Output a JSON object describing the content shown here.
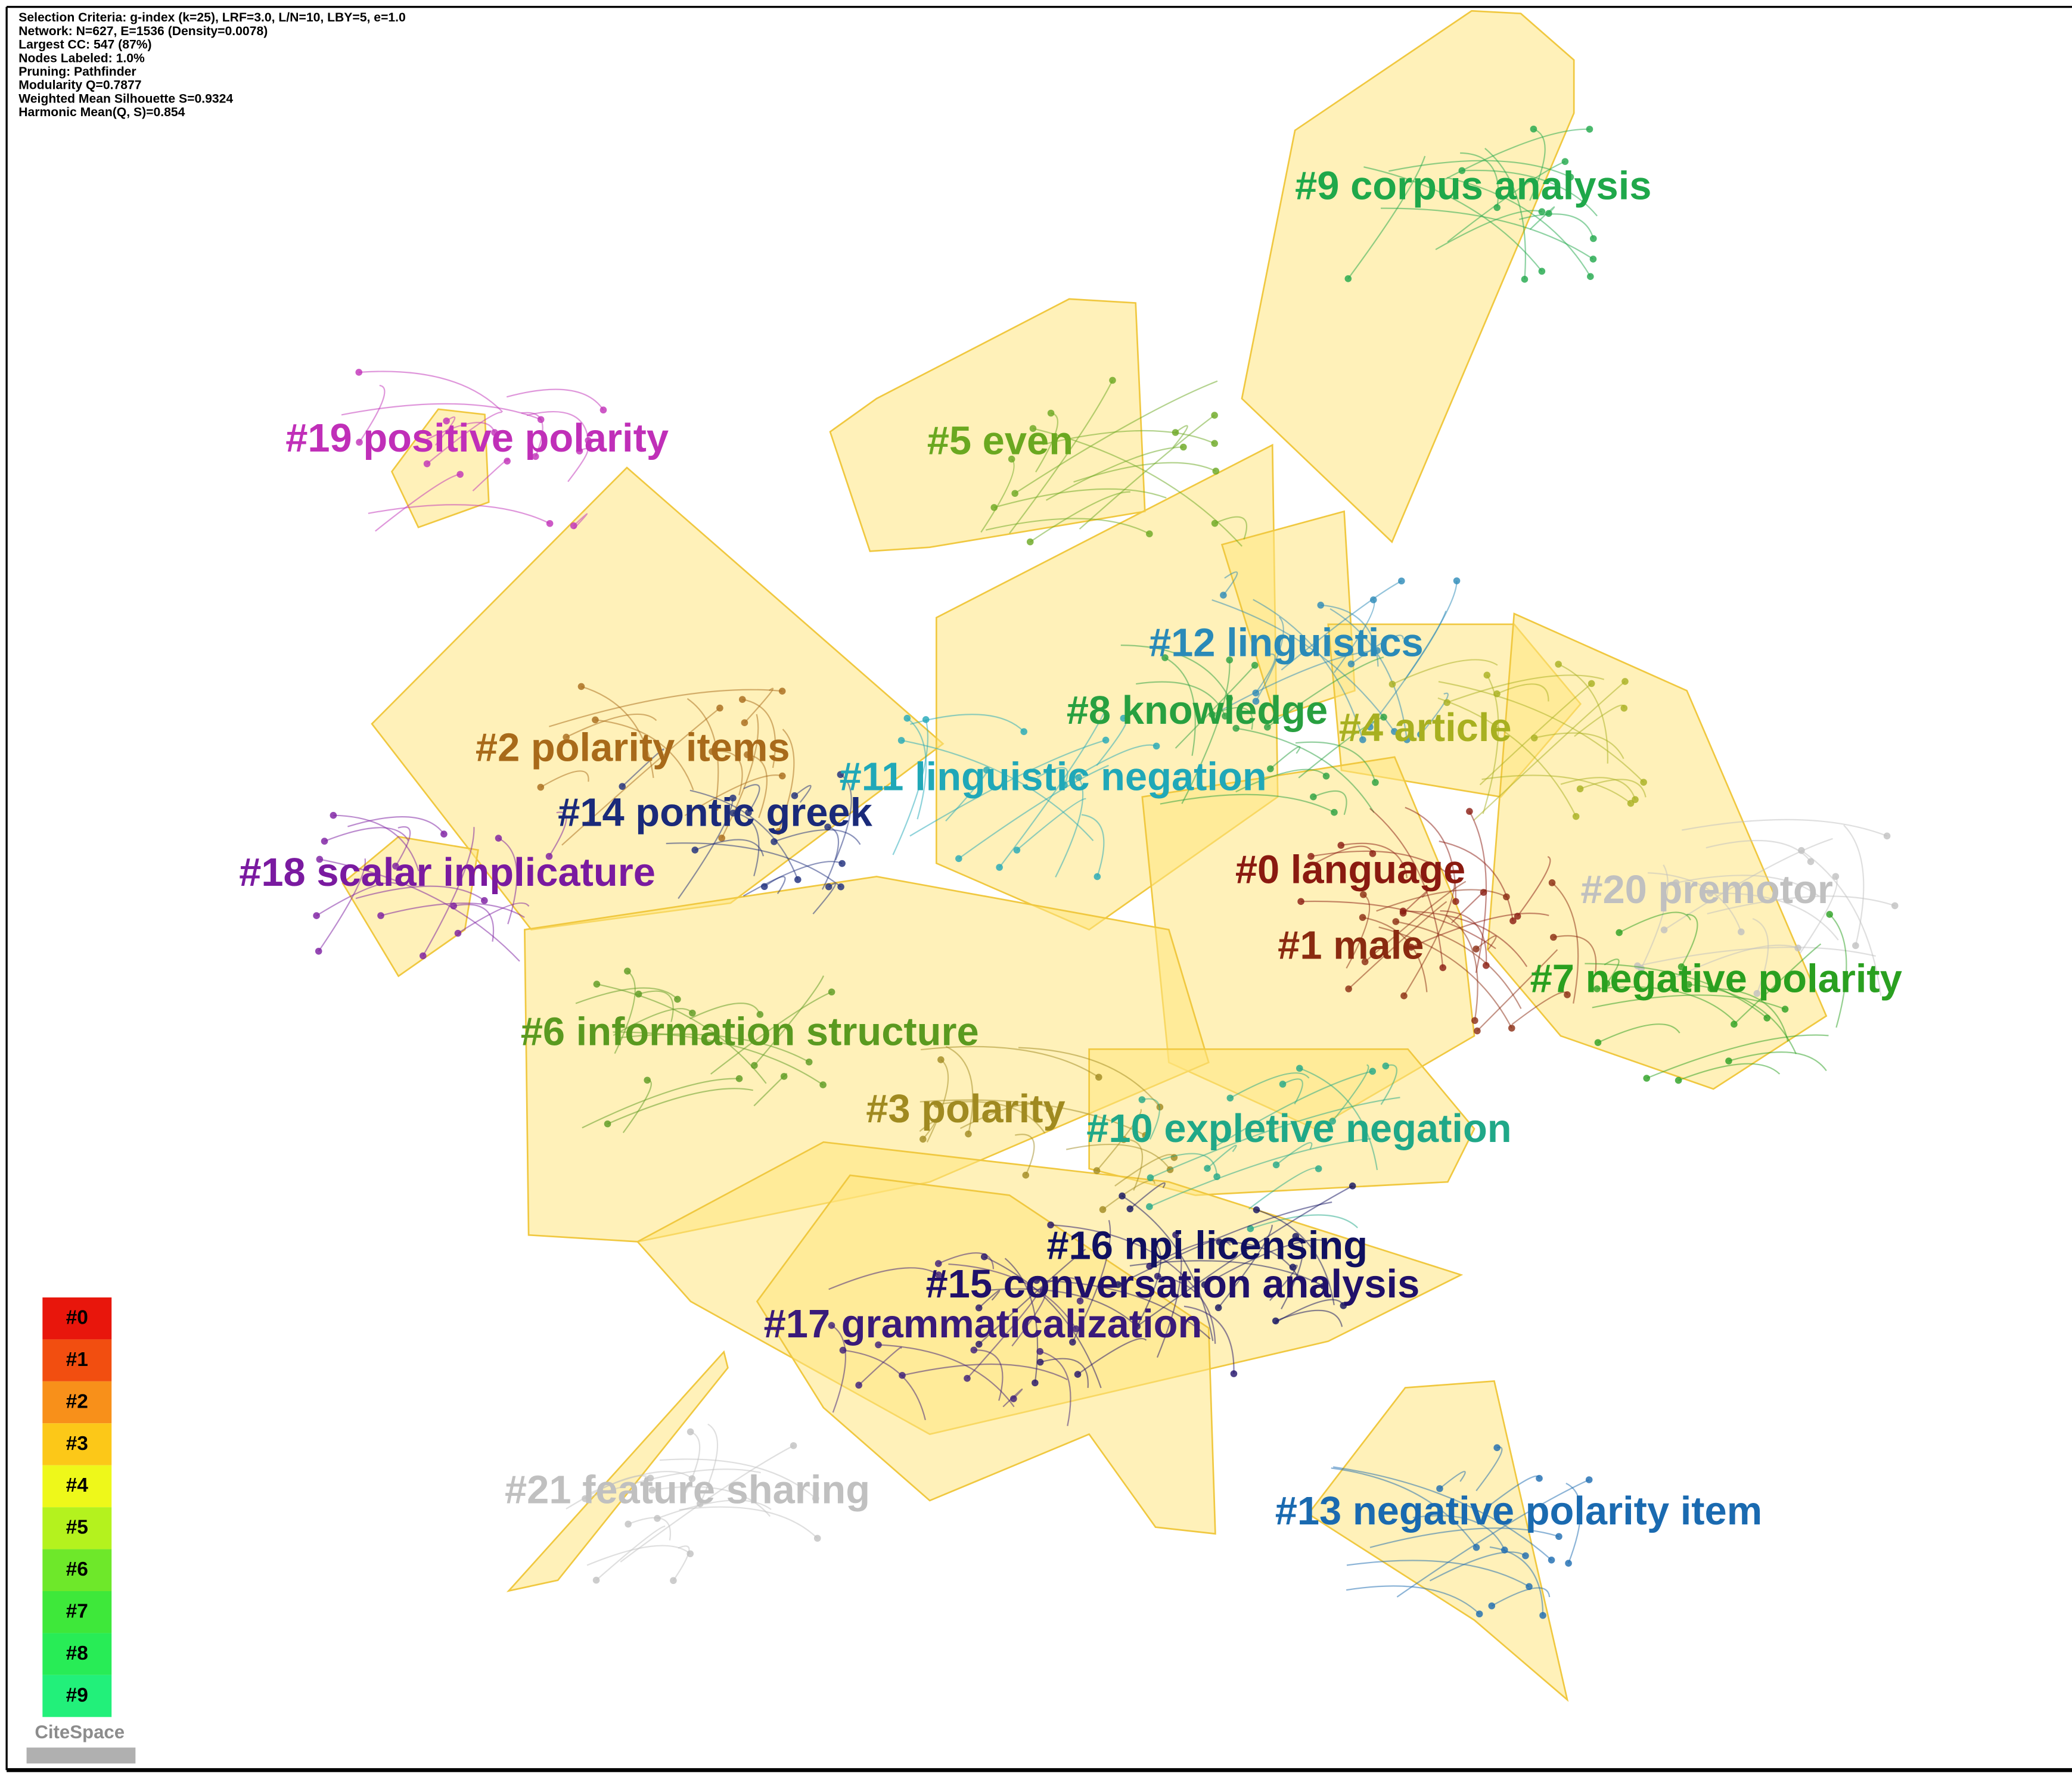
{
  "info": [
    "Selection Criteria: g-index (k=25), LRF=3.0, L/N=10, LBY=5, e=1.0",
    "Network: N=627, E=1536 (Density=0.0078)",
    "Largest CC: 547 (87%)",
    "Nodes Labeled: 1.0%",
    "Pruning: Pathfinder",
    "Modularity Q=0.7877",
    "Weighted Mean Silhouette S=0.9324",
    "Harmonic Mean(Q, S)=0.854"
  ],
  "clusters": [
    {
      "label": "#9 corpus analysis",
      "color": "#1fa84a"
    },
    {
      "label": "#19 positive polarity",
      "color": "#c02fb8"
    },
    {
      "label": "#5 even",
      "color": "#6aa820"
    },
    {
      "label": "#12 linguistics",
      "color": "#2a8ab8"
    },
    {
      "label": "#8 knowledge",
      "color": "#28a040"
    },
    {
      "label": "#4 article",
      "color": "#a8b020"
    },
    {
      "label": "#2 polarity items",
      "color": "#a86a1a"
    },
    {
      "label": "#11 linguistic negation",
      "color": "#20a8b8"
    },
    {
      "label": "#14 pontic greek",
      "color": "#1a2a7a"
    },
    {
      "label": "#18 scalar implicature",
      "color": "#7a1aa0"
    },
    {
      "label": "#0 language",
      "color": "#8a1a10"
    },
    {
      "label": "#20 premotor",
      "color": "#c0c0c0"
    },
    {
      "label": "#1 male",
      "color": "#8a2a10"
    },
    {
      "label": "#7 negative polarity",
      "color": "#2aa020"
    },
    {
      "label": "#6 information structure",
      "color": "#5a9a20"
    },
    {
      "label": "#3 polarity",
      "color": "#a08a20"
    },
    {
      "label": "#10 expletive negation",
      "color": "#20a888"
    },
    {
      "label": "#16 npi licensing",
      "color": "#101060"
    },
    {
      "label": "#15 conversation analysis",
      "color": "#20106a"
    },
    {
      "label": "#17 grammaticalization",
      "color": "#3a1a7a"
    },
    {
      "label": "#21 feature sharing",
      "color": "#c0c0c0"
    },
    {
      "label": "#13 negative polarity item",
      "color": "#1a6ab0"
    }
  ],
  "legend": [
    {
      "label": "#0",
      "color": "#e8160c"
    },
    {
      "label": "#1",
      "color": "#f24e10"
    },
    {
      "label": "#2",
      "color": "#f8901a"
    },
    {
      "label": "#3",
      "color": "#fcc818"
    },
    {
      "label": "#4",
      "color": "#eef81a"
    },
    {
      "label": "#5",
      "color": "#b4f21e"
    },
    {
      "label": "#6",
      "color": "#6ee82a"
    },
    {
      "label": "#7",
      "color": "#3ee83a"
    },
    {
      "label": "#8",
      "color": "#28ec56"
    },
    {
      "label": "#9",
      "color": "#22f07a"
    }
  ],
  "logo": "CiteSpace"
}
